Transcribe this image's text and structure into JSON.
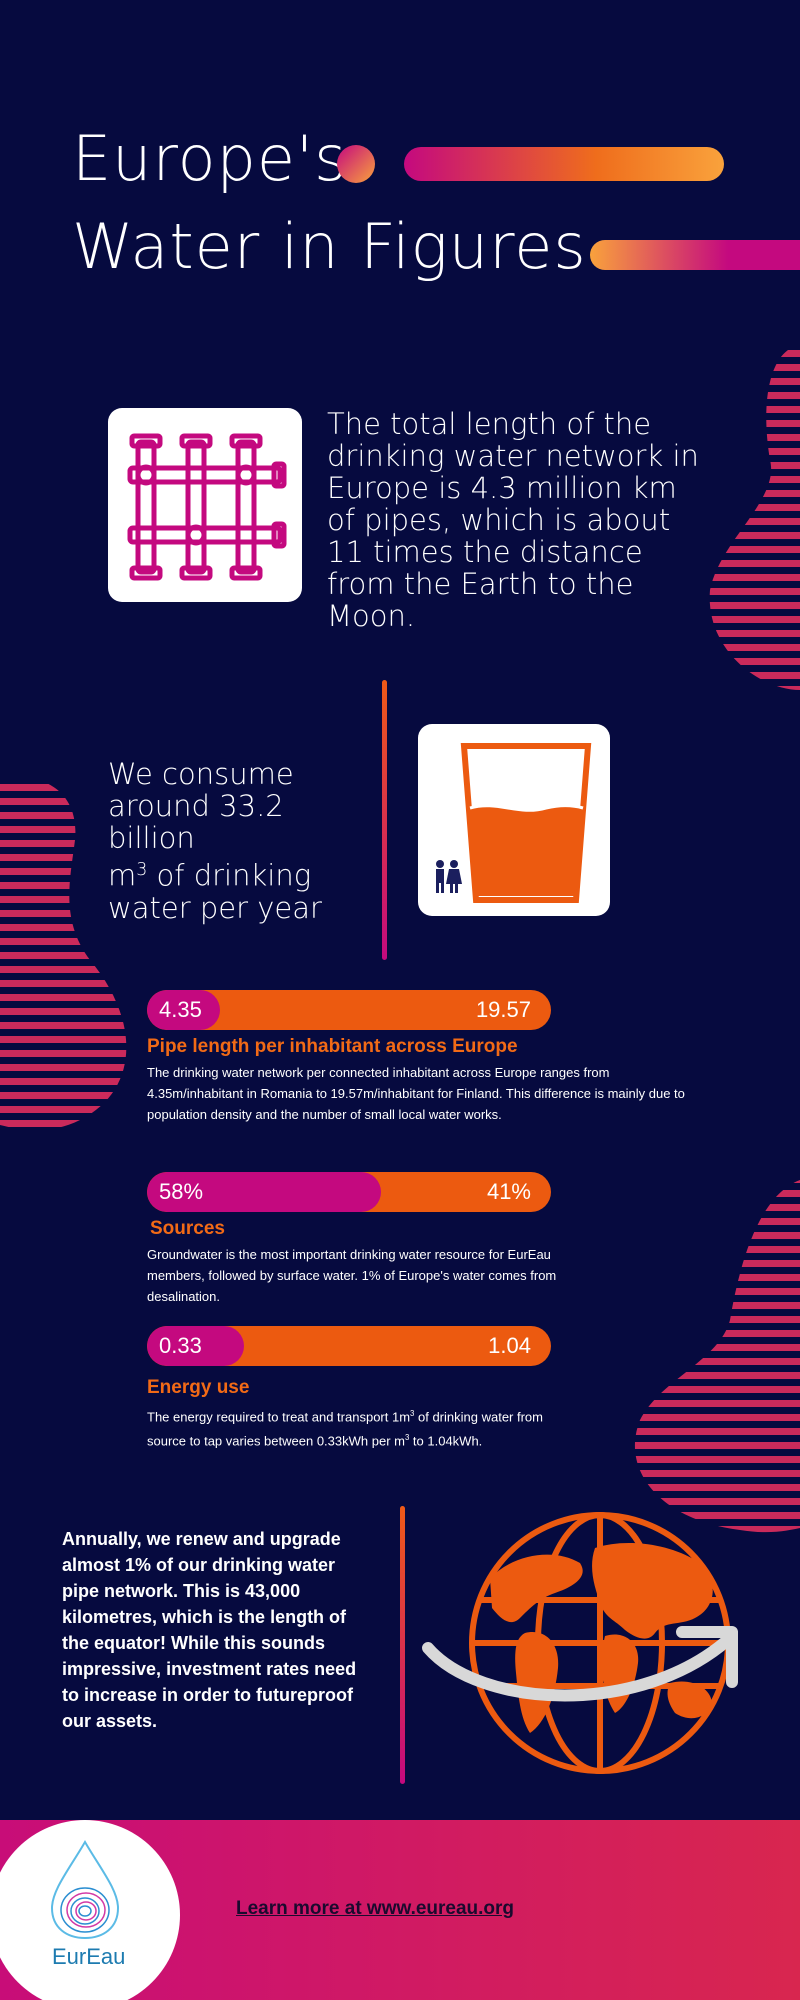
{
  "title": {
    "line1": "Europe's",
    "line2": "Water in Figures"
  },
  "pipe_fact": {
    "text": "The total length of the drinking water network in Europe is 4.3 million km of pipes, which is about 11 times the distance from the Earth to the Moon."
  },
  "consumption": {
    "line1": "We consume",
    "line2": "around 33.2 billion",
    "unit": "m",
    "unit_exp": "3",
    "line3_rest": " of drinking",
    "line4": "water per year"
  },
  "stats": [
    {
      "left_value": "4.35",
      "right_value": "19.57",
      "left_fraction": 0.18,
      "heading": "Pipe length per inhabitant across Europe",
      "desc": "The drinking water network per connected inhabitant across Europe ranges from 4.35m/inhabitant in Romania to 19.57m/inhabitant for Finland. This difference is mainly due to population density and the number of small local water works."
    },
    {
      "left_value": "58%",
      "right_value": "41%",
      "left_fraction": 0.58,
      "heading": "Sources",
      "desc": "Groundwater is the most important drinking water resource for EurEau members, followed by surface water. 1% of Europe's water comes from desalination."
    },
    {
      "left_value": "0.33",
      "right_value": "1.04",
      "left_fraction": 0.24,
      "heading": "Energy use",
      "desc_part1": "The energy required to treat and transport 1m",
      "desc_exp1": "3",
      "desc_part2": " of drinking water from source to tap varies between 0.33kWh per m",
      "desc_exp2": "3",
      "desc_part3": " to 1.04kWh."
    }
  ],
  "renewal": {
    "text": "Annually, we renew and upgrade almost 1% of our drinking water pipe network. This is 43,000 kilometres, which is the length of the equator! While this sounds impressive, investment rates need to increase in order to futureproof our assets."
  },
  "footer": {
    "logo_text": "EurEau",
    "link_text": "Learn more at www.eureau.org"
  },
  "colors": {
    "background": "#060a3f",
    "magenta": "#c4097f",
    "orange": "#ec5a10",
    "light_orange": "#f9a23c",
    "footer_gradient_start": "#c80d78",
    "footer_gradient_end": "#d8264f"
  },
  "icons": [
    "pipes-icon",
    "water-glass-icon",
    "people-icon",
    "globe-icon",
    "curved-arrow-icon",
    "water-drop-logo-icon"
  ]
}
